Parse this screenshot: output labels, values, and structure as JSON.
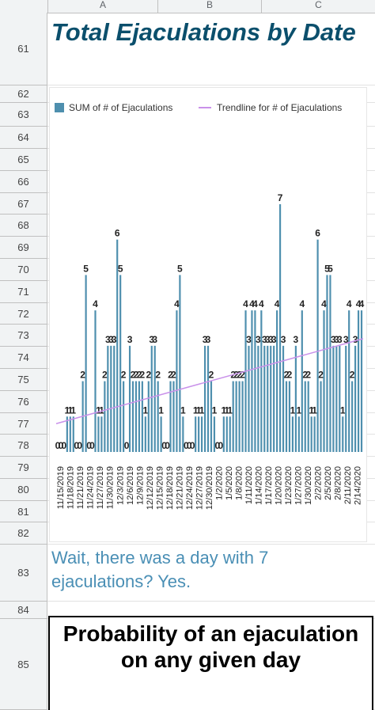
{
  "columns": [
    "A",
    "B",
    "C"
  ],
  "rows": [
    "61",
    "62",
    "63",
    "64",
    "65",
    "66",
    "67",
    "68",
    "69",
    "70",
    "71",
    "72",
    "73",
    "74",
    "75",
    "76",
    "77",
    "78",
    "79",
    "80",
    "81",
    "82",
    "83",
    "84",
    "85"
  ],
  "title": "Total Ejaculations by Date",
  "note": "Wait, there was a day with 7 ejaculations? Yes.",
  "heading": "Probability of an ejaculation on any given day",
  "colors": {
    "bar": "#4e8fae",
    "trend": "#c991ea",
    "title": "#0b4f6c",
    "note": "#4a8fb5"
  },
  "chart_data": {
    "type": "bar",
    "title": "",
    "legend": {
      "placement": "top",
      "entries": [
        "SUM of # of Ejaculations",
        "Trendline for # of Ejaculations"
      ]
    },
    "ylim": [
      0,
      7
    ],
    "grid": false,
    "x_tick_labels": [
      "11/15/2019",
      "11/18/2019",
      "11/21/2019",
      "11/24/2019",
      "11/27/2019",
      "11/30/2019",
      "12/3/2019",
      "12/6/2019",
      "12/9/2019",
      "12/12/2019",
      "12/15/2019",
      "12/18/2019",
      "12/21/2019",
      "12/24/2019",
      "12/27/2019",
      "12/30/2019",
      "1/2/2020",
      "1/5/2020",
      "1/8/2020",
      "1/11/2020",
      "1/14/2020",
      "1/17/2020",
      "1/20/2020",
      "1/23/2020",
      "1/27/2020",
      "1/30/2020",
      "2/2/2020",
      "2/5/2020",
      "2/8/2020",
      "2/11/2020",
      "2/14/2020"
    ],
    "start_date": "11/15/2019",
    "values": [
      0,
      0,
      0,
      1,
      1,
      1,
      0,
      0,
      2,
      5,
      0,
      0,
      4,
      1,
      1,
      2,
      3,
      3,
      3,
      6,
      5,
      2,
      0,
      3,
      2,
      2,
      2,
      2,
      1,
      2,
      3,
      3,
      2,
      1,
      0,
      0,
      2,
      2,
      4,
      5,
      1,
      0,
      0,
      0,
      1,
      1,
      1,
      3,
      3,
      2,
      1,
      0,
      0,
      1,
      1,
      1,
      2,
      2,
      2,
      2,
      4,
      3,
      4,
      4,
      3,
      4,
      3,
      3,
      3,
      3,
      4,
      7,
      3,
      2,
      2,
      1,
      3,
      1,
      4,
      2,
      2,
      1,
      1,
      6,
      2,
      4,
      5,
      5,
      3,
      3,
      3,
      1,
      3,
      4,
      2,
      3,
      4,
      4
    ],
    "trendline": {
      "start": 0.8,
      "end": 3.2
    }
  }
}
